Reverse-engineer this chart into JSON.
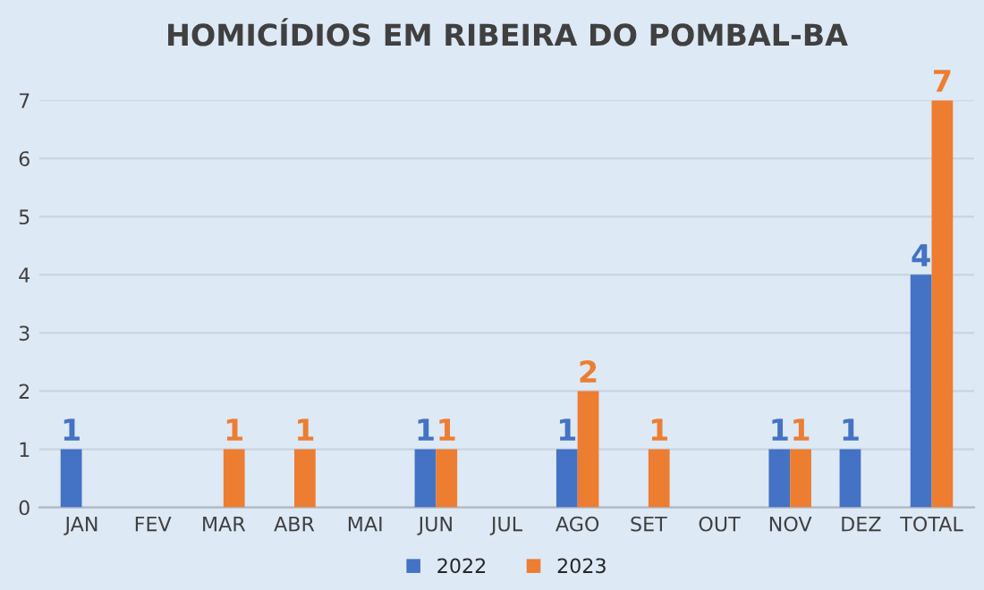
{
  "chart_data": {
    "type": "bar",
    "title": "HOMICÍDIOS EM RIBEIRA DO POMBAL-BA",
    "categories": [
      "JAN",
      "FEV",
      "MAR",
      "ABR",
      "MAI",
      "JUN",
      "JUL",
      "AGO",
      "SET",
      "OUT",
      "NOV",
      "DEZ",
      "TOTAL"
    ],
    "series": [
      {
        "name": "2022",
        "color": "#4472c4",
        "values": [
          1,
          0,
          0,
          0,
          0,
          1,
          0,
          1,
          0,
          0,
          1,
          1,
          4
        ],
        "value_labels": [
          "1",
          null,
          null,
          null,
          null,
          "1",
          null,
          "1",
          null,
          null,
          "1",
          "1",
          "4"
        ]
      },
      {
        "name": "2023",
        "color": "#ed7d31",
        "values": [
          0,
          0,
          1,
          1,
          0,
          1,
          0,
          2,
          1,
          0,
          1,
          0,
          7
        ],
        "value_labels": [
          null,
          null,
          "1",
          "1",
          null,
          "1",
          null,
          "2",
          "1",
          null,
          "1",
          null,
          "7"
        ]
      }
    ],
    "ylim": [
      0,
      7
    ],
    "yticks": [
      0,
      1,
      2,
      3,
      4,
      5,
      6,
      7
    ],
    "grid": "y",
    "legend": "bottom"
  }
}
